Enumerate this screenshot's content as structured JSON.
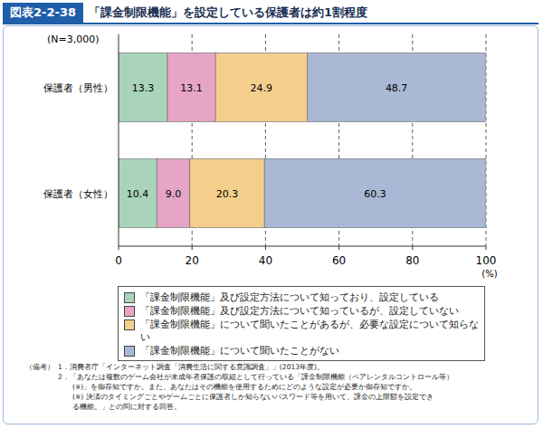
{
  "chart_data": {
    "type": "bar",
    "orientation": "horizontal",
    "stacked": true,
    "data_labels": true,
    "grid": true,
    "figure_number": "図表2-2-38",
    "title": "「課金制限機能」を設定している保護者は約1割程度",
    "annotations": [
      "(N=3,000)"
    ],
    "x_label": "(%)",
    "categories": [
      "保護者（男性）",
      "保護者（女性）"
    ],
    "series": [
      {
        "name": "「課金制限機能」及び設定方法について知っており、設定している",
        "color": "#a9d4ba",
        "values": [
          13.3,
          10.4
        ]
      },
      {
        "name": "「課金制限機能」及び設定方法について知っているが、設定していない",
        "color": "#e6a5c6",
        "values": [
          13.1,
          9.0
        ]
      },
      {
        "name": "「課金制限機能」について聞いたことがあるが、必要な設定について知らない",
        "color": "#f4cf8c",
        "values": [
          24.9,
          20.3
        ]
      },
      {
        "name": "「課金制限機能」について聞いたことがない",
        "color": "#a9b8d4",
        "values": [
          48.7,
          60.3
        ]
      }
    ],
    "xlim": [
      0,
      100
    ],
    "xticks": [
      0,
      20,
      40,
      60,
      80,
      100
    ],
    "notes_label": "（備考）",
    "notes": [
      "1．消費者庁「インターネット調査「消費生活に関する意識調査」」(2013年度)。",
      "2．「あなたは複数のゲーム会社が未成年者保護の取組として行っている「課金制限機能（ペアレンタルコントロール等）",
      "　　(※)」を御存知ですか。また、あなたはその機能を使用するためにどのような設定が必要か御存知ですか。",
      "　　(※) 決済のタイミングごとやゲームごとに保護者しか知らないパスワード等を用いて、課金の上限額を設定でき",
      "　　る機能。」との問に対する回答。"
    ]
  }
}
